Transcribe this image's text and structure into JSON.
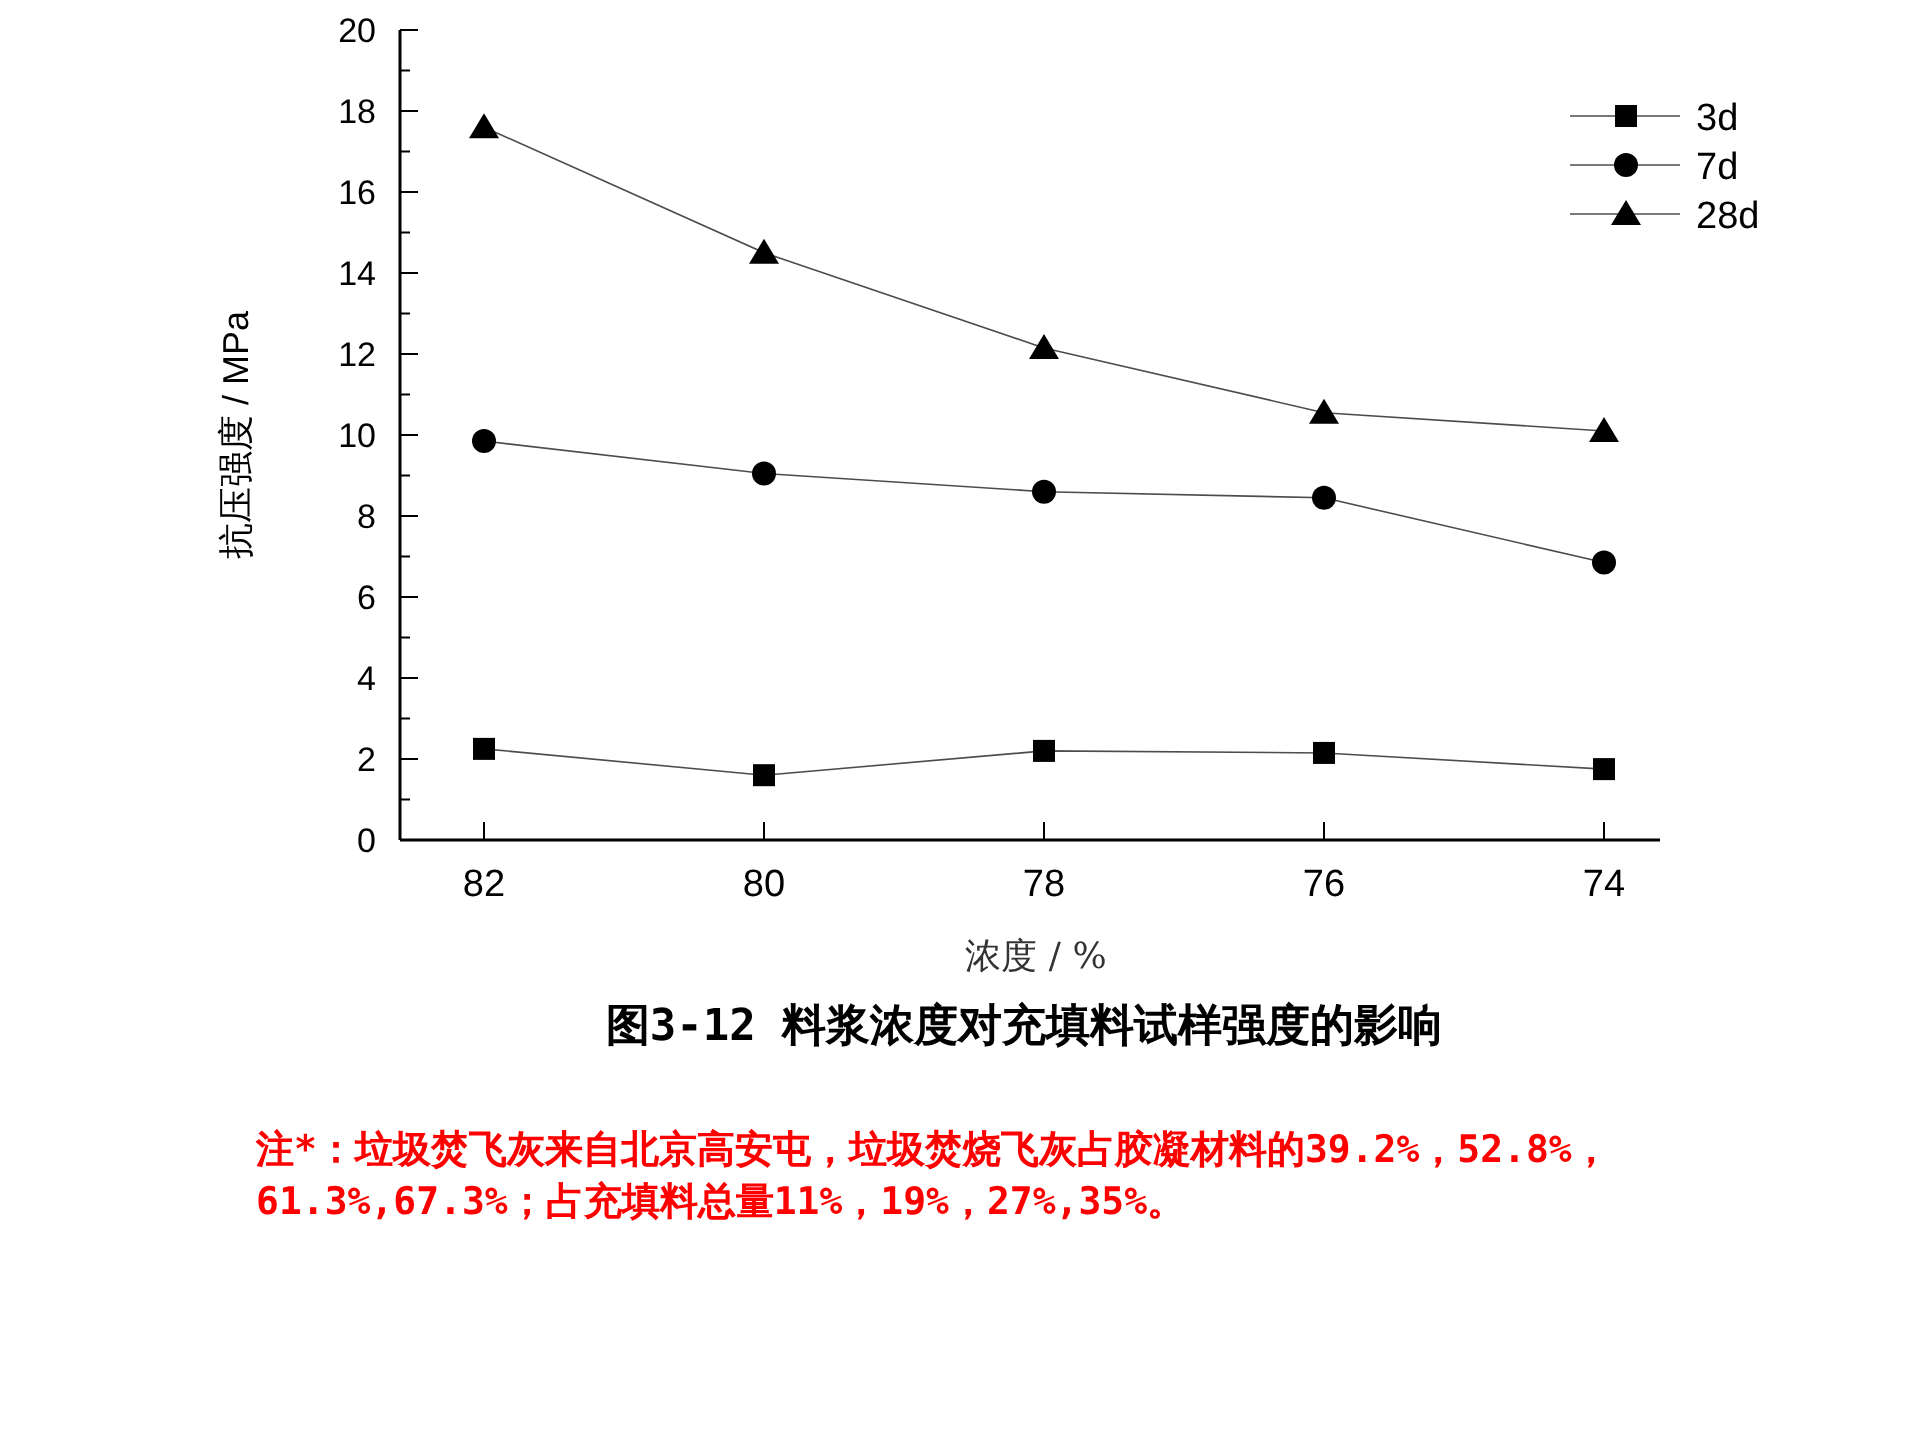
{
  "chart_data": {
    "type": "line",
    "title": "图3-12 料浆浓度对充填料试样强度的影响",
    "xlabel": "浓度 / %",
    "ylabel": "抗压强度 / MPa",
    "x": [
      82,
      80,
      78,
      76,
      74
    ],
    "xlim": [
      82.6,
      73.6
    ],
    "xticks": [
      82,
      80,
      78,
      76,
      74
    ],
    "ylim": [
      0,
      20
    ],
    "yticks": [
      0,
      2,
      4,
      6,
      8,
      10,
      12,
      14,
      16,
      18,
      20
    ],
    "series": [
      {
        "name": "3d",
        "color": "#000000",
        "marker": "square",
        "values": [
          2.25,
          1.6,
          2.2,
          2.15,
          1.75
        ]
      },
      {
        "name": "7d",
        "color": "#000000",
        "marker": "circle",
        "values": [
          9.85,
          9.05,
          8.6,
          8.45,
          6.85
        ]
      },
      {
        "name": "28d",
        "color": "#000000",
        "marker": "triangle",
        "values": [
          17.6,
          14.5,
          12.15,
          10.55,
          10.1
        ]
      }
    ],
    "legend": "top right",
    "grid": false,
    "line_style": "solid",
    "annotations": [
      "注*：垃圾焚飞灰来自北京高安屯，垃圾焚烧飞灰占胶凝材料的39.2%，52.8%，61.3%,67.3%；占充填料总量11%，19%，27%,35%。"
    ]
  }
}
